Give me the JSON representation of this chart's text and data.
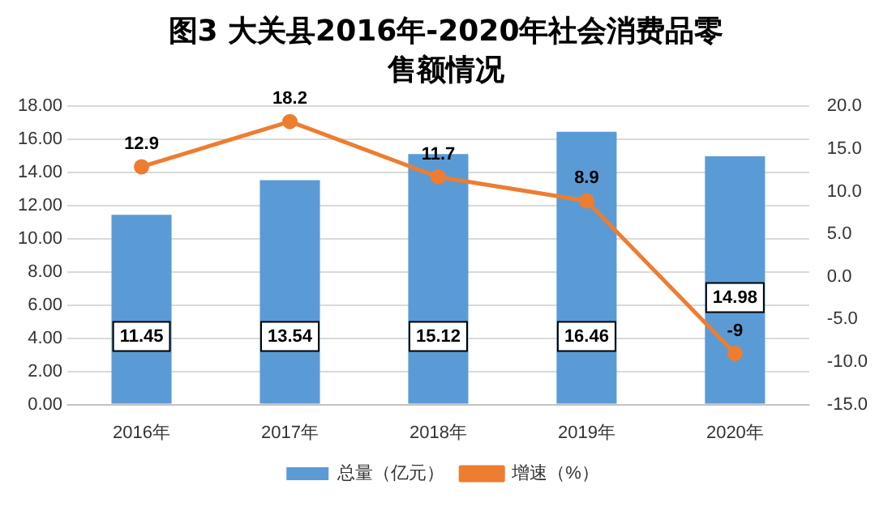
{
  "chart_data": {
    "type": "bar",
    "title": "图3  大关县2016年-2020年社会消费品零售额情况",
    "categories": [
      "2016年",
      "2017年",
      "2018年",
      "2019年",
      "2020年"
    ],
    "series": [
      {
        "name": "总量（亿元）",
        "color": "#5b9bd5",
        "values": [
          11.45,
          13.54,
          15.12,
          16.46,
          14.98
        ]
      },
      {
        "name": "增速（%）",
        "type": "line",
        "axis": "y2",
        "color": "#ed7d31",
        "values": [
          12.9,
          18.2,
          11.7,
          8.9,
          -9
        ]
      }
    ],
    "ylim": [
      0,
      18
    ],
    "yticks": [
      {
        "value": 0,
        "label": "0.00"
      },
      {
        "value": 2,
        "label": "2.00"
      },
      {
        "value": 4,
        "label": "4.00"
      },
      {
        "value": 6,
        "label": "6.00"
      },
      {
        "value": 8,
        "label": "8.00"
      },
      {
        "value": 10,
        "label": "10.00"
      },
      {
        "value": 12,
        "label": "12.00"
      },
      {
        "value": 14,
        "label": "14.00"
      },
      {
        "value": 16,
        "label": "16.00"
      },
      {
        "value": 18,
        "label": "18.00"
      }
    ],
    "y2lim": [
      -15,
      20
    ],
    "y2ticks": [
      {
        "value": -15,
        "label": "-15.0"
      },
      {
        "value": -10,
        "label": "-10.0"
      },
      {
        "value": -5,
        "label": "-5.0"
      },
      {
        "value": 0,
        "label": "0.0"
      },
      {
        "value": 5,
        "label": "5.0"
      },
      {
        "value": 10,
        "label": "10.0"
      },
      {
        "value": 15,
        "label": "15.0"
      },
      {
        "value": 20,
        "label": "20.0"
      }
    ],
    "grid": "y",
    "legend": "bottom",
    "marker": "circle",
    "data_labels": true
  }
}
